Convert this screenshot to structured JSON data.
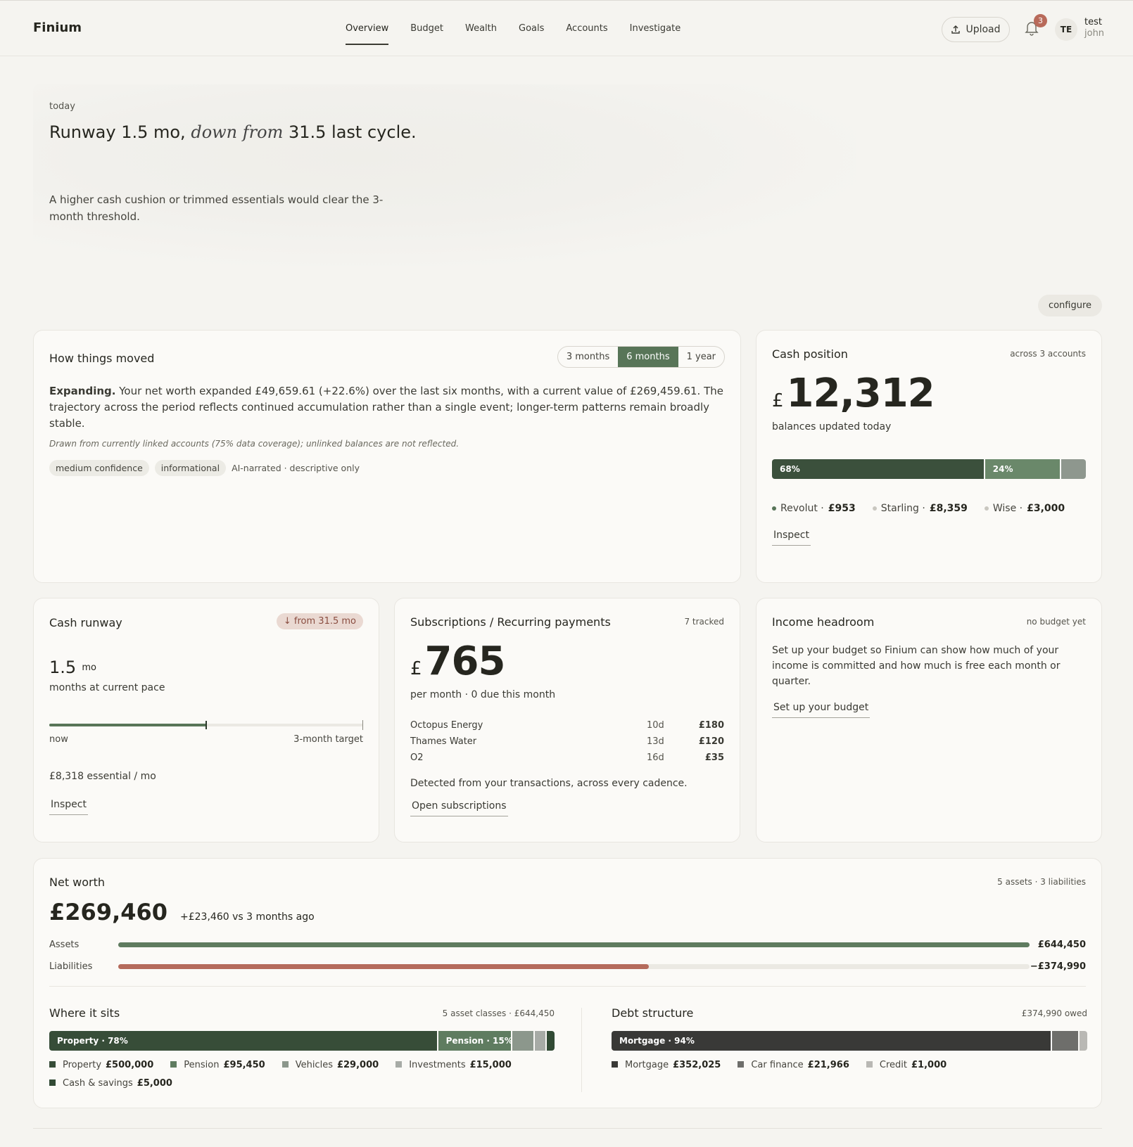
{
  "nav": {
    "brand": "Finium",
    "links": [
      "Overview",
      "Budget",
      "Wealth",
      "Goals",
      "Accounts",
      "Investigate"
    ],
    "upload": "Upload",
    "notifications": "3",
    "avatar": "TE",
    "user_name": "test",
    "user_sub": "john"
  },
  "hero": {
    "eyebrow": "today",
    "headline_lead": "Runway 1.5 mo,",
    "headline_em": "down from",
    "headline_tail": "31.5 last cycle.",
    "body": "A higher cash cushion or trimmed essentials would clear the 3-month threshold."
  },
  "configure": "configure",
  "movement": {
    "title": "How things moved",
    "ranges": [
      "3 months",
      "6 months",
      "1 year"
    ],
    "lead": "Expanding.",
    "body": "Your net worth expanded £49,659.61 (+22.6%) over the last six months, with a current value of £269,459.61. The trajectory across the period reflects continued accumulation rather than a single event; longer-term patterns remain broadly stable.",
    "note": "Drawn from currently linked accounts (75% data coverage); unlinked balances are not reflected.",
    "tags": [
      "medium confidence",
      "informational"
    ],
    "source": "AI-narrated · descriptive only"
  },
  "cash_position": {
    "title": "Cash position",
    "meta": "across 3 accounts",
    "currency": "£",
    "amount": "12,312",
    "caption": "balances updated today",
    "bar": [
      {
        "value": 8359,
        "label": "68%",
        "color": "#3b503c"
      },
      {
        "value": 3000,
        "label": "24%",
        "color": "#6a886a"
      },
      {
        "value": 953,
        "color": "#8e978e"
      }
    ],
    "accounts": [
      {
        "name": "Revolut ·",
        "amount": "£953",
        "color": "#587558"
      },
      {
        "name": "Starling ·",
        "amount": "£8,359",
        "color": "#c9c7c0"
      },
      {
        "name": "Wise ·",
        "amount": "£3,000",
        "color": "#c9c7c0"
      }
    ],
    "action": "Inspect"
  },
  "runway": {
    "title": "Cash runway",
    "badge": "↓ from 31.5 mo",
    "value": 1.5,
    "unit": "mo",
    "caption": "months at current pace",
    "start_label": "now",
    "target": {
      "value": 3,
      "label": "3-month target"
    },
    "essential": "£8,318 essential / mo",
    "action": "Inspect"
  },
  "subscriptions": {
    "title": "Subscriptions / Recurring payments",
    "meta": "7 tracked",
    "currency": "£",
    "amount": "765",
    "caption": "per month · 0 due this month",
    "rows": [
      [
        "Octopus Energy",
        "10d",
        "£180"
      ],
      [
        "Thames Water",
        "13d",
        "£120"
      ],
      [
        "O2",
        "16d",
        "£35"
      ]
    ],
    "note": "Detected from your transactions, across every cadence.",
    "action": "Open subscriptions"
  },
  "income": {
    "title": "Income headroom",
    "meta": "no budget yet",
    "body": "Set up your budget so Finium can show how much of your income is committed and how much is free each month or quarter.",
    "action": "Set up your budget"
  },
  "net_worth": {
    "title": "Net worth",
    "meta": "5 assets · 3 liabilities",
    "amount": "£269,460",
    "change": "+£23,460 vs 3 months ago",
    "rows": [
      {
        "label": "Assets",
        "value": 644450,
        "amount": "£644,450",
        "color": "#5f7c60"
      },
      {
        "label": "Liabilities",
        "value": -374990,
        "amount": "−£374,990",
        "color": "#b56b5c"
      }
    ]
  },
  "assets": {
    "title": "Where it sits",
    "meta": "5 asset classes · £644,450",
    "segments": [
      {
        "name": "Property",
        "value": 500000,
        "amount": "£500,000",
        "bar_label": "Property · 78%",
        "color": "#374d38"
      },
      {
        "name": "Pension",
        "value": 95450,
        "amount": "£95,450",
        "bar_label": "Pension · 15%",
        "color": "#5f7c60"
      },
      {
        "name": "Vehicles",
        "value": 29000,
        "amount": "£29,000",
        "color": "#8c978c"
      },
      {
        "name": "Investments",
        "value": 15000,
        "amount": "£15,000",
        "color": "#a7aba6"
      },
      {
        "name": "Cash & savings",
        "value": 5000,
        "amount": "£5,000",
        "color": "#314a34"
      }
    ]
  },
  "debt": {
    "title": "Debt structure",
    "meta": "£374,990 owed",
    "segments": [
      {
        "name": "Mortgage",
        "value": 352025,
        "amount": "£352,025",
        "bar_label": "Mortgage · 94%",
        "color": "#393937"
      },
      {
        "name": "Car finance",
        "value": 21966,
        "amount": "£21,966",
        "color": "#6e6e6b"
      },
      {
        "name": "Credit",
        "value": 1000,
        "amount": "£1,000",
        "color": "#b9b8b4"
      }
    ]
  }
}
